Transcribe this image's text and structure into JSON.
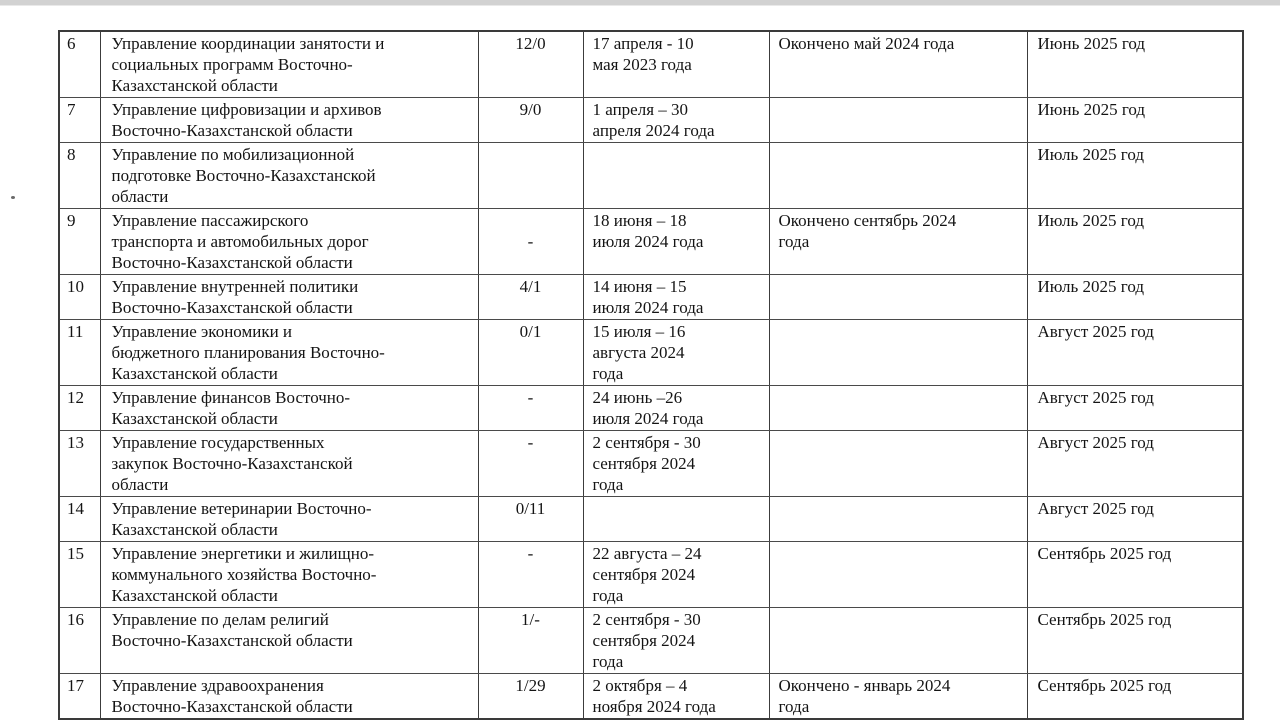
{
  "colors": {
    "page_background": "#ffffff",
    "top_edge_strip": "#d2d2d2",
    "table_border": "#3c3c3c",
    "text": "#141414"
  },
  "artifacts": {
    "margin_dot": ""
  },
  "table": {
    "column_keys": [
      "num",
      "name",
      "ratio",
      "dates",
      "status",
      "plan"
    ],
    "rows": [
      {
        "num": "6",
        "name": "Управление координации занятости и\nсоциальных программ Восточно-\nКазахстанской области",
        "ratio": "12/0",
        "dates": "17 апреля - 10\nмая 2023 года",
        "status": "Окончено май 2024 года",
        "plan": "Июнь 2025 год"
      },
      {
        "num": "7",
        "name": "Управление цифровизации и архивов\nВосточно-Казахстанской области",
        "ratio": "9/0",
        "dates": "1 апреля – 30\nапреля 2024 года",
        "status": "",
        "plan": "Июнь 2025 год"
      },
      {
        "num": "8",
        "name": "Управление по мобилизационной\nподготовке Восточно-Казахстанской\nобласти",
        "ratio": "",
        "dates": "",
        "status": "",
        "plan": "Июль 2025 год"
      },
      {
        "num": "9",
        "name": "Управление пассажирского\nтранспорта и автомобильных дорог\nВосточно-Казахстанской области",
        "ratio": "\n-",
        "dates": "18 июня – 18\nиюля 2024 года",
        "status": "Окончено сентябрь 2024\nгода",
        "plan": "Июль 2025 год"
      },
      {
        "num": "10",
        "name": "Управление внутренней политики\nВосточно-Казахстанской области",
        "ratio": "4/1",
        "dates": "14 июня – 15\nиюля 2024 года",
        "status": "",
        "plan": "Июль 2025 год"
      },
      {
        "num": "11",
        "name": "Управление экономики и\nбюджетного планирования Восточно-\nКазахстанской области",
        "ratio": "0/1",
        "dates": "15 июля – 16\nавгуста 2024\nгода",
        "status": "",
        "plan": "Август 2025 год"
      },
      {
        "num": "12",
        "name": "Управление финансов Восточно-\nКазахстанской области",
        "ratio": "-",
        "dates": "24 июнь –26\nиюля 2024 года",
        "status": "",
        "plan": "Август 2025 год"
      },
      {
        "num": "13",
        "name": "Управление государственных\nзакупок Восточно-Казахстанской\nобласти",
        "ratio": "-",
        "dates": "2 сентября - 30\nсентября 2024\nгода",
        "status": "",
        "plan": "Август 2025 год"
      },
      {
        "num": "14",
        "name": "Управление ветеринарии Восточно-\nКазахстанской области",
        "ratio": "0/11",
        "dates": "",
        "status": "",
        "plan": "Август 2025 год"
      },
      {
        "num": "15",
        "name": "Управление энергетики и жилищно-\nкоммунального хозяйства Восточно-\nКазахстанской области",
        "ratio": "-",
        "dates": "22 августа – 24\nсентября 2024\nгода",
        "status": "",
        "plan": "Сентябрь 2025 год"
      },
      {
        "num": "16",
        "name": "Управление по делам религий\nВосточно-Казахстанской области",
        "ratio": "1/-",
        "dates": "2 сентября - 30\nсентября 2024\nгода",
        "status": "",
        "plan": "Сентябрь 2025 год"
      },
      {
        "num": "17",
        "name": "Управление здравоохранения\nВосточно-Казахстанской области",
        "ratio": "1/29",
        "dates": "2 октября – 4\nноября 2024 года",
        "status": "Окончено - январь 2024\nгода",
        "plan": "Сентябрь 2025 год"
      }
    ]
  }
}
